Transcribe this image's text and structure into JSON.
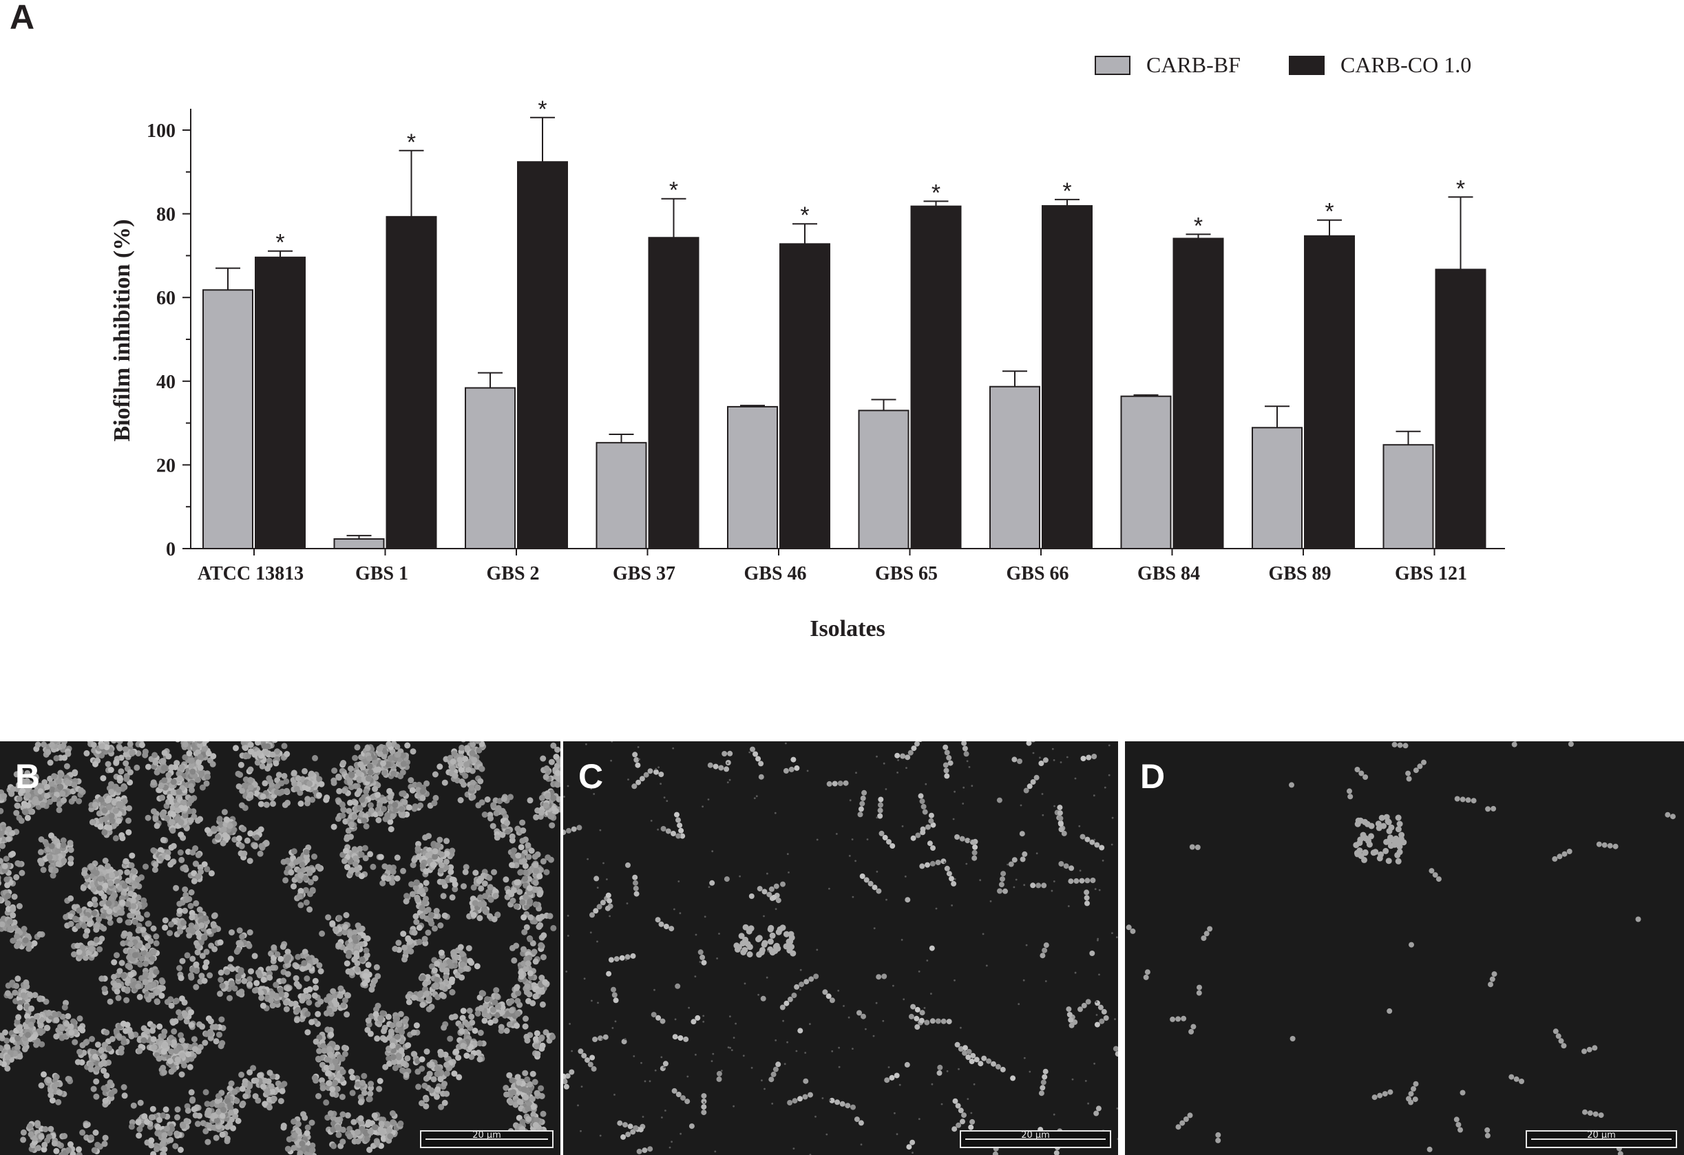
{
  "panels": {
    "a": "A",
    "b": "B",
    "c": "C",
    "d": "D"
  },
  "scale_bar_label": "20 μm",
  "chart_data": {
    "type": "bar",
    "ylabel": "Biofilm inhibition (%)",
    "xlabel": "Isolates",
    "ylim": [
      0,
      100
    ],
    "yticks": [
      0,
      20,
      40,
      60,
      80,
      100
    ],
    "categories": [
      "ATCC 13813",
      "GBS 1",
      "GBS 2",
      "GBS 37",
      "GBS 46",
      "GBS 65",
      "GBS 66",
      "GBS 84",
      "GBS 89",
      "GBS 121"
    ],
    "series": [
      {
        "name": "CARB-BF",
        "color": "#b1b1b6",
        "values": [
          61.8,
          2.3,
          38.4,
          25.3,
          33.9,
          33.0,
          38.7,
          36.4,
          28.9,
          24.8
        ],
        "errors": [
          5.2,
          0.8,
          3.6,
          2.0,
          0.3,
          2.6,
          3.7,
          0.3,
          5.1,
          3.2
        ]
      },
      {
        "name": "CARB-CO 1.0",
        "color": "#231f20",
        "values": [
          69.6,
          79.3,
          92.4,
          74.3,
          72.8,
          81.8,
          81.9,
          74.1,
          74.7,
          66.7
        ],
        "errors": [
          1.5,
          15.8,
          10.6,
          9.3,
          4.8,
          1.2,
          1.5,
          1.0,
          3.8,
          17.3
        ]
      }
    ],
    "significance_marker": "*",
    "legend_position": "top-right",
    "grid": false
  }
}
